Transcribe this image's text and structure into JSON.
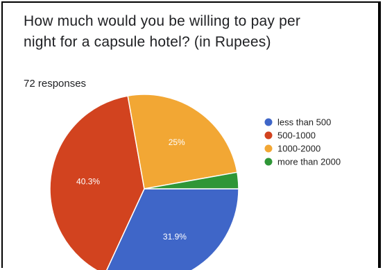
{
  "question": {
    "title": "How much would you be willing to pay per night for a capsule hotel? (in Rupees)",
    "responses": "72 responses"
  },
  "chart_data": {
    "type": "pie",
    "title": "How much would you be willing to pay per night for a capsule hotel? (in Rupees)",
    "categories": [
      "less than 500",
      "500-1000",
      "1000-2000",
      "more than 2000"
    ],
    "values": [
      31.9,
      40.3,
      25,
      2.8
    ],
    "labels": [
      "31.9%",
      "40.3%",
      "25%",
      ""
    ],
    "colors": [
      "#3f66c8",
      "#d2431f",
      "#f2a734",
      "#2f9637"
    ],
    "legend": "right"
  }
}
